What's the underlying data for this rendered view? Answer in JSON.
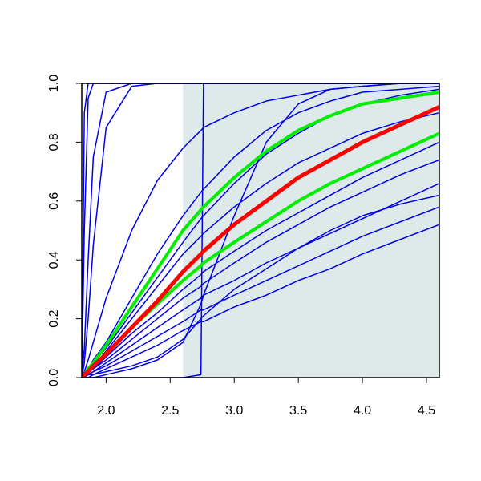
{
  "chart_data": {
    "type": "line",
    "x": [
      1.81,
      1.83,
      1.86,
      1.9,
      2.0,
      2.2,
      2.4,
      2.6,
      2.74,
      2.76,
      3.0,
      3.25,
      3.5,
      3.75,
      4.0,
      4.3,
      4.6
    ],
    "xlim": [
      1.81,
      4.6
    ],
    "ylim": [
      0,
      1
    ],
    "xticks": [
      {
        "value": 2,
        "label": "2.0"
      },
      {
        "value": 2.5,
        "label": "2.5"
      },
      {
        "value": 3,
        "label": "3.0"
      },
      {
        "value": 3.5,
        "label": "3.5"
      },
      {
        "value": 4,
        "label": "4.0"
      },
      {
        "value": 4.5,
        "label": "4.5"
      }
    ],
    "yticks": [
      {
        "value": 0,
        "label": "0.0"
      },
      0.2,
      0.4,
      0.6,
      0.8,
      {
        "value": 1,
        "label": "1.0"
      }
    ],
    "shaded_region": {
      "x": [
        2.6,
        4.6
      ],
      "color": "#deeaea"
    },
    "series": [
      {
        "color": "#0000ee",
        "values": [
          0,
          0.9,
          1,
          1,
          1,
          1,
          1,
          1,
          1,
          1,
          1,
          1,
          1,
          1,
          1,
          1,
          1
        ]
      },
      {
        "color": "#0000ee",
        "values": [
          0,
          0.5,
          0.95,
          1,
          1,
          1,
          1,
          1,
          1,
          1,
          1,
          1,
          1,
          1,
          1,
          1,
          1
        ]
      },
      {
        "color": "#0000ee",
        "values": [
          0,
          0.1,
          0.4,
          0.75,
          0.97,
          1,
          1,
          1,
          1,
          1,
          1,
          1,
          1,
          1,
          1,
          1,
          1
        ]
      },
      {
        "color": "#0000ee",
        "values": [
          0,
          0.05,
          0.2,
          0.45,
          0.85,
          0.99,
          1,
          1,
          1,
          1,
          1,
          1,
          1,
          1,
          1,
          1,
          1
        ]
      },
      {
        "color": "#0000ee",
        "values": [
          0,
          0.02,
          0.06,
          0.12,
          0.27,
          0.5,
          0.67,
          0.78,
          0.84,
          0.85,
          0.9,
          0.94,
          0.96,
          0.98,
          0.99,
          1,
          1
        ]
      },
      {
        "color": "#0000ee",
        "values": [
          0,
          0,
          0,
          0,
          0,
          0,
          0,
          0,
          0.01,
          1,
          1,
          1,
          1,
          1,
          1,
          1,
          1
        ]
      },
      {
        "color": "#0000ee",
        "values": [
          0,
          0,
          0,
          0,
          0.01,
          0.03,
          0.06,
          0.12,
          0.25,
          0.28,
          0.55,
          0.8,
          0.93,
          0.98,
          0.99,
          1,
          1
        ]
      },
      {
        "color": "#0000ee",
        "values": [
          0,
          0.01,
          0.03,
          0.06,
          0.12,
          0.27,
          0.42,
          0.55,
          0.63,
          0.64,
          0.75,
          0.84,
          0.9,
          0.94,
          0.97,
          0.98,
          0.99
        ]
      },
      {
        "color": "#0000ee",
        "values": [
          0,
          0.01,
          0.02,
          0.04,
          0.09,
          0.2,
          0.31,
          0.42,
          0.48,
          0.49,
          0.58,
          0.66,
          0.73,
          0.78,
          0.83,
          0.87,
          0.9
        ]
      },
      {
        "color": "#0000ee",
        "values": [
          0,
          0.01,
          0.02,
          0.03,
          0.07,
          0.15,
          0.22,
          0.3,
          0.35,
          0.36,
          0.43,
          0.5,
          0.56,
          0.62,
          0.68,
          0.74,
          0.8
        ]
      },
      {
        "color": "#0000ee",
        "values": [
          0,
          0.005,
          0.01,
          0.02,
          0.05,
          0.11,
          0.17,
          0.23,
          0.27,
          0.28,
          0.33,
          0.39,
          0.44,
          0.49,
          0.54,
          0.6,
          0.66
        ]
      },
      {
        "color": "#0000ee",
        "values": [
          0,
          0.005,
          0.01,
          0.02,
          0.04,
          0.09,
          0.14,
          0.19,
          0.23,
          0.23,
          0.28,
          0.33,
          0.38,
          0.43,
          0.48,
          0.53,
          0.58
        ]
      },
      {
        "color": "#0000ee",
        "values": [
          0,
          0,
          0.01,
          0.01,
          0.03,
          0.07,
          0.11,
          0.16,
          0.19,
          0.19,
          0.24,
          0.28,
          0.33,
          0.37,
          0.42,
          0.47,
          0.52
        ]
      },
      {
        "color": "#0000ee",
        "values": [
          0,
          0,
          0,
          0.01,
          0.02,
          0.04,
          0.07,
          0.13,
          0.2,
          0.21,
          0.3,
          0.37,
          0.44,
          0.5,
          0.55,
          0.59,
          0.62
        ]
      },
      {
        "color": "#0000ee",
        "values": [
          0,
          0.01,
          0.03,
          0.05,
          0.1,
          0.22,
          0.34,
          0.46,
          0.54,
          0.55,
          0.66,
          0.76,
          0.83,
          0.89,
          0.93,
          0.96,
          0.98
        ]
      },
      {
        "color": "#0000ee",
        "values": [
          0,
          0.005,
          0.015,
          0.03,
          0.06,
          0.13,
          0.2,
          0.27,
          0.31,
          0.32,
          0.39,
          0.46,
          0.52,
          0.58,
          0.63,
          0.69,
          0.74
        ]
      },
      {
        "color": "#00ee00",
        "width": 4,
        "values": [
          0,
          0.01,
          0.03,
          0.05,
          0.11,
          0.24,
          0.37,
          0.5,
          0.57,
          0.58,
          0.68,
          0.77,
          0.84,
          0.89,
          0.93,
          0.95,
          0.97
        ]
      },
      {
        "color": "#00ee00",
        "width": 4,
        "values": [
          0,
          0.01,
          0.02,
          0.04,
          0.08,
          0.17,
          0.25,
          0.33,
          0.38,
          0.39,
          0.46,
          0.53,
          0.6,
          0.66,
          0.71,
          0.77,
          0.83
        ]
      },
      {
        "color": "#ff0000",
        "width": 5,
        "values": [
          0,
          0.01,
          0.02,
          0.04,
          0.08,
          0.17,
          0.26,
          0.36,
          0.42,
          0.43,
          0.52,
          0.6,
          0.68,
          0.74,
          0.8,
          0.86,
          0.92
        ]
      }
    ]
  }
}
